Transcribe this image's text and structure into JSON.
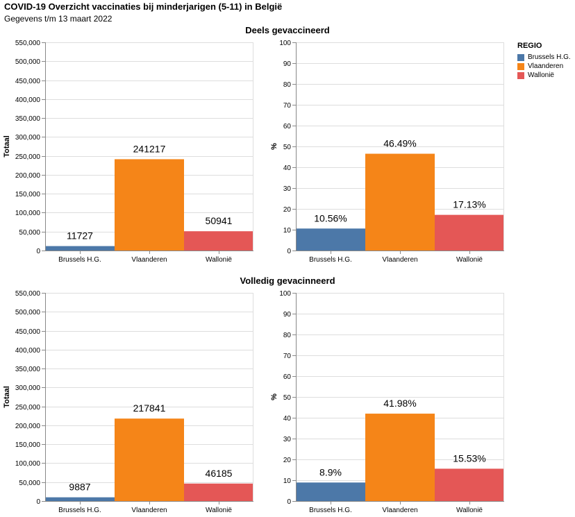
{
  "title": "COVID-19 Overzicht vaccinaties bij minderjarigen (5-11) in België",
  "subtitle": "Gegevens t/m 13 maart 2022",
  "legend": {
    "title": "REGIO",
    "items": [
      {
        "label": "Brussels H.G.",
        "color": "#4c78a8"
      },
      {
        "label": "Vlaanderen",
        "color": "#f58518"
      },
      {
        "label": "Wallonië",
        "color": "#e45756"
      }
    ]
  },
  "sections": [
    {
      "title": "Deels gevaccineerd"
    },
    {
      "title": "Volledig gevacinneerd"
    }
  ],
  "chart_data": [
    {
      "type": "bar",
      "section": "Deels gevaccineerd",
      "categories": [
        "Brussels H.G.",
        "Vlaanderen",
        "Wallonië"
      ],
      "values": [
        11727,
        241217,
        50941
      ],
      "labels": [
        "11727",
        "241217",
        "50941"
      ],
      "ylabel": "Totaal",
      "ylim": [
        0,
        550000
      ],
      "yticks": [
        "0",
        "50,000",
        "100,000",
        "150,000",
        "200,000",
        "250,000",
        "300,000",
        "350,000",
        "400,000",
        "450,000",
        "500,000",
        "550,000"
      ],
      "grid": true
    },
    {
      "type": "bar",
      "section": "Deels gevaccineerd",
      "categories": [
        "Brussels H.G.",
        "Vlaanderen",
        "Wallonië"
      ],
      "values": [
        10.56,
        46.49,
        17.13
      ],
      "labels": [
        "10.56%",
        "46.49%",
        "17.13%"
      ],
      "ylabel": "%",
      "ylim": [
        0,
        100
      ],
      "yticks": [
        "0",
        "10",
        "20",
        "30",
        "40",
        "50",
        "60",
        "70",
        "80",
        "90",
        "100"
      ],
      "grid": true
    },
    {
      "type": "bar",
      "section": "Volledig gevacinneerd",
      "categories": [
        "Brussels H.G.",
        "Vlaanderen",
        "Wallonië"
      ],
      "values": [
        9887,
        217841,
        46185
      ],
      "labels": [
        "9887",
        "217841",
        "46185"
      ],
      "ylabel": "Totaal",
      "ylim": [
        0,
        550000
      ],
      "yticks": [
        "0",
        "50,000",
        "100,000",
        "150,000",
        "200,000",
        "250,000",
        "300,000",
        "350,000",
        "400,000",
        "450,000",
        "500,000",
        "550,000"
      ],
      "grid": true
    },
    {
      "type": "bar",
      "section": "Volledig gevacinneerd",
      "categories": [
        "Brussels H.G.",
        "Vlaanderen",
        "Wallonië"
      ],
      "values": [
        8.9,
        41.98,
        15.53
      ],
      "labels": [
        "8.9%",
        "41.98%",
        "15.53%"
      ],
      "ylabel": "%",
      "ylim": [
        0,
        100
      ],
      "yticks": [
        "0",
        "10",
        "20",
        "30",
        "40",
        "50",
        "60",
        "70",
        "80",
        "90",
        "100"
      ],
      "grid": true
    }
  ]
}
